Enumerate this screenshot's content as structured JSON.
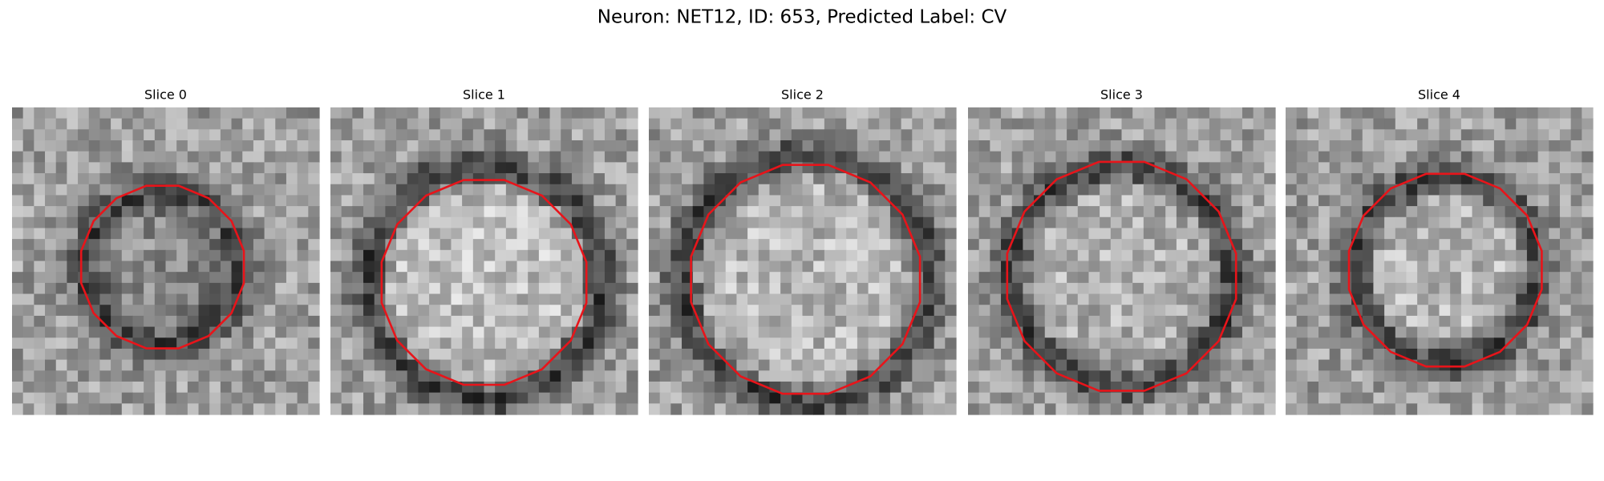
{
  "title": "Neuron: NET12, ID: 653, Predicted Label: CV",
  "panels": [
    {
      "title": "Slice 0"
    },
    {
      "title": "Slice 1"
    },
    {
      "title": "Slice 2"
    },
    {
      "title": "Slice 3"
    },
    {
      "title": "Slice 4"
    }
  ]
}
